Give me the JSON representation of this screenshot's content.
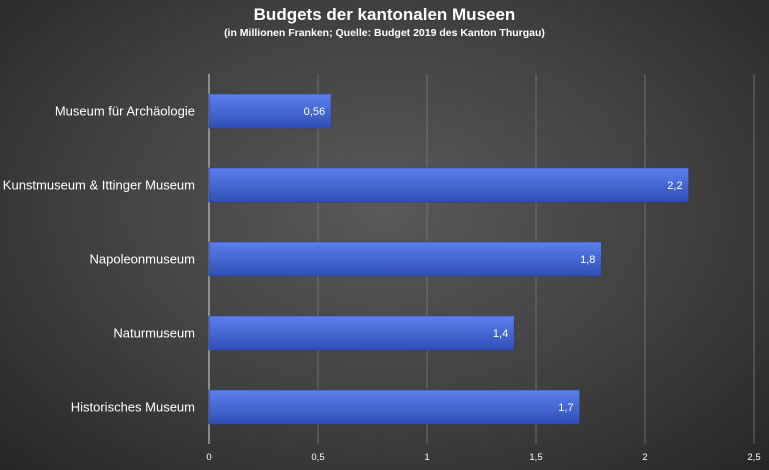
{
  "chart_data": {
    "type": "bar",
    "orientation": "horizontal",
    "title": "Budgets der kantonalen Museen",
    "subtitle": "(in Millionen Franken; Quelle: Budget 2019 des Kanton Thurgau)",
    "categories": [
      "Museum für Archäologie",
      "Kunstmuseum & Ittinger Museum",
      "Napoleonmuseum",
      "Naturmuseum",
      "Historisches Museum"
    ],
    "values": [
      0.56,
      2.2,
      1.8,
      1.4,
      1.7
    ],
    "value_labels": [
      "0,56",
      "2,2",
      "1,8",
      "1,4",
      "1,7"
    ],
    "xlim": [
      0,
      2.5
    ],
    "x_ticks": [
      0,
      0.5,
      1,
      1.5,
      2,
      2.5
    ],
    "x_tick_labels": [
      "0",
      "0,5",
      "1",
      "1,5",
      "2",
      "2,5"
    ],
    "grid": true,
    "legend": "none",
    "colors": {
      "bar": "#4a6fe0",
      "bar_dark": "#2f4fb5",
      "text": "#ffffff",
      "grid": "#7a7a7a"
    }
  }
}
